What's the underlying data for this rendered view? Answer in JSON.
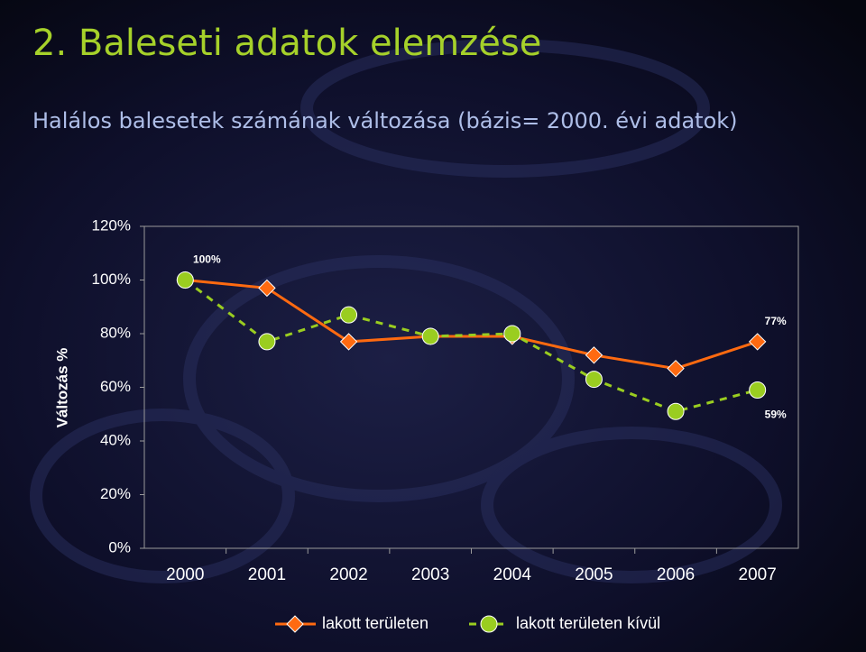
{
  "chart_data": {
    "type": "line",
    "title": "2. Baleseti adatok elemzése",
    "subtitle": "Halálos balesetek számának változása (bázis= 2000. évi adatok)",
    "y_label": "Változás %",
    "categories": [
      "2000",
      "2001",
      "2002",
      "2003",
      "2004",
      "2005",
      "2006",
      "2007"
    ],
    "series": [
      {
        "name": "lakott területen",
        "color": "#ff6a10",
        "marker": "diamond",
        "dash": false,
        "values": [
          100,
          97,
          77,
          79,
          79,
          72,
          67,
          77
        ],
        "value_labels": [
          "100%",
          null,
          null,
          null,
          null,
          null,
          null,
          "77%"
        ]
      },
      {
        "name": "lakott területen kívül",
        "color": "#9acd20",
        "marker": "circle",
        "dash": true,
        "values": [
          100,
          77,
          87,
          79,
          80,
          63,
          51,
          59
        ],
        "value_labels": [
          null,
          null,
          null,
          null,
          null,
          null,
          null,
          "59%"
        ]
      }
    ],
    "ylim": [
      0,
      120
    ],
    "yticks": [
      {
        "value": 0,
        "label": "0%"
      },
      {
        "value": 20,
        "label": "20%"
      },
      {
        "value": 40,
        "label": "40%"
      },
      {
        "value": 60,
        "label": "60%"
      },
      {
        "value": 80,
        "label": "80%"
      },
      {
        "value": 100,
        "label": "100%"
      },
      {
        "value": 120,
        "label": "120%"
      }
    ],
    "grid": false
  }
}
